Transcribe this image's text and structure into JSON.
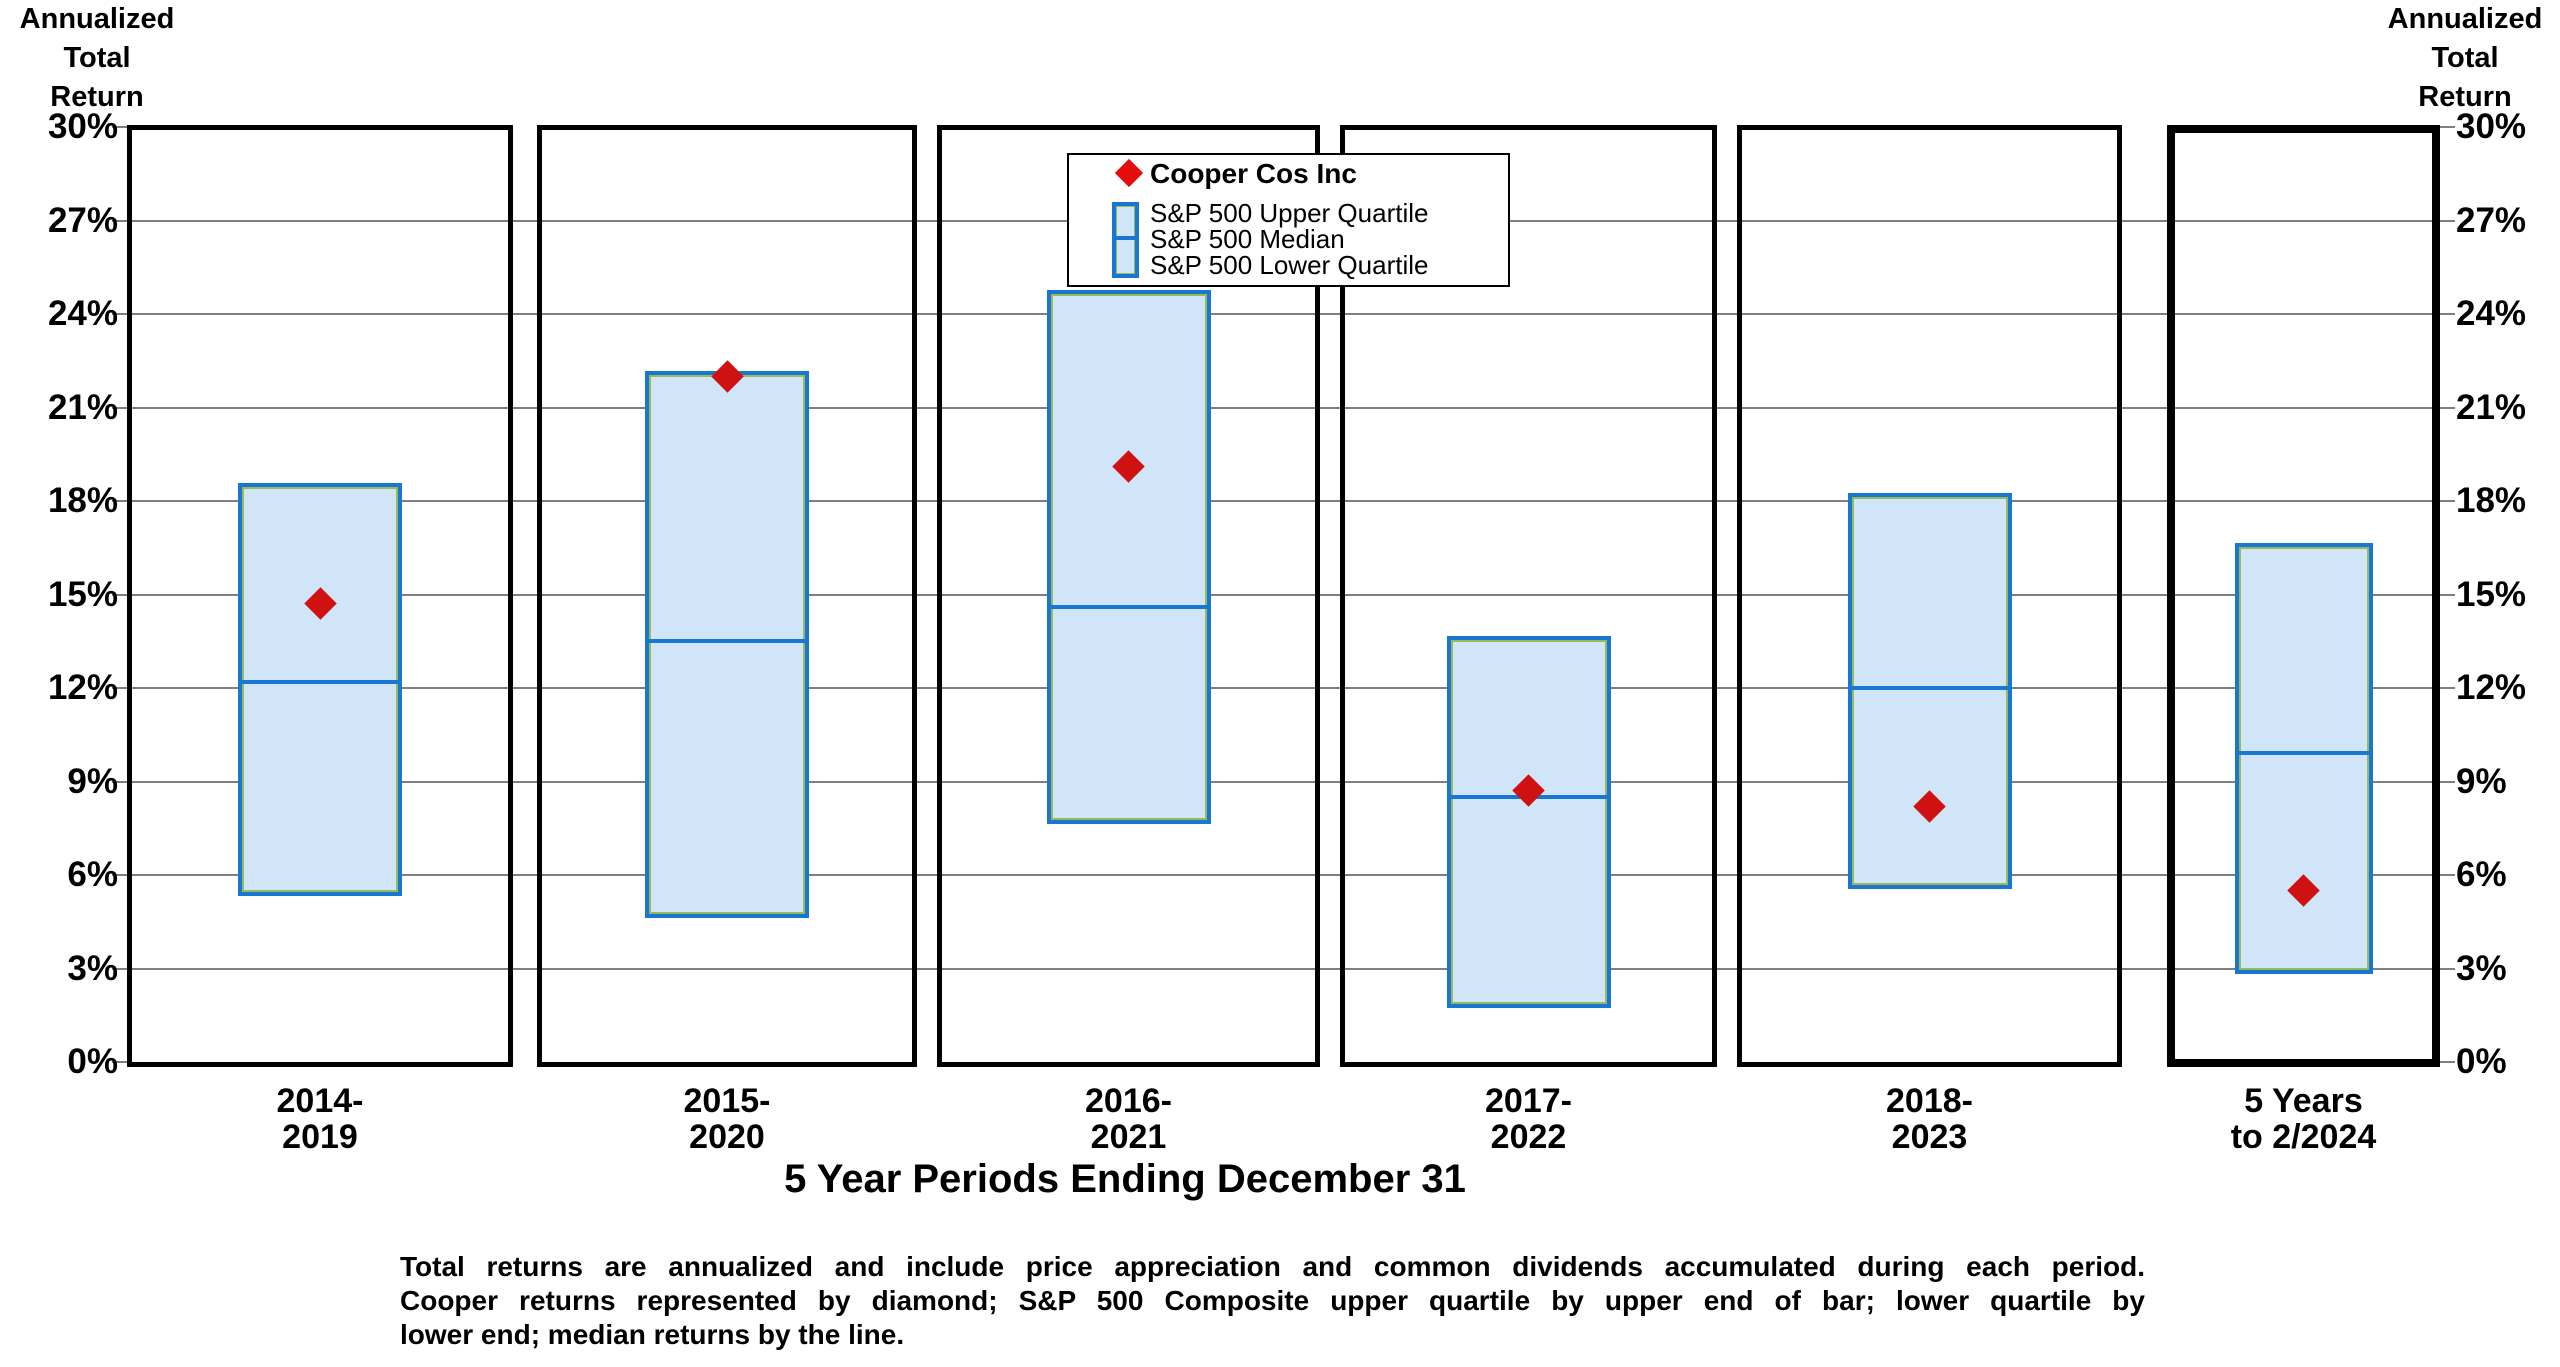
{
  "titles": {
    "y_axis_left": [
      "Annualized",
      "Total",
      "Return"
    ],
    "y_axis_right": [
      "Annualized",
      "Total",
      "Return"
    ],
    "x_axis": "5 Year Periods Ending December 31"
  },
  "legend": {
    "cooper": "Cooper Cos Inc",
    "upper": "S&P 500 Upper Quartile",
    "median": "S&P 500 Median",
    "lower": "S&P 500 Lower Quartile"
  },
  "footnote": {
    "line1": "Total returns are annualized and include price appreciation and common dividends accumulated during each period.",
    "line2": "Cooper returns represented by diamond; S&P 500 Composite upper quartile by upper end of bar; lower quartile by",
    "line3": "lower end; median returns by the line."
  },
  "colors": {
    "bar_fill": "#d0e6f8",
    "bar_border": "#1777d2",
    "bar_inner_edge": "#9aba57",
    "diamond_red": "#d01111",
    "gridline": "#7f7f7f",
    "frame": "#000000"
  },
  "chart_data": {
    "type": "bar",
    "subtype": "floating-quartile-range-bars-with-diamond-markers",
    "categories": [
      "2014-2019",
      "2015-2020",
      "2016-2021",
      "2017-2022",
      "2018-2023",
      "5 Years to 2/2024"
    ],
    "category_label_lines": [
      [
        "2014-",
        "2019"
      ],
      [
        "2015-",
        "2020"
      ],
      [
        "2016-",
        "2021"
      ],
      [
        "2017-",
        "2022"
      ],
      [
        "2018-",
        "2023"
      ],
      [
        "5 Years",
        "to  2/2024"
      ]
    ],
    "series": [
      {
        "name": "Cooper Cos Inc",
        "marker": "red-diamond",
        "values": [
          14.7,
          22.0,
          19.1,
          8.7,
          8.2,
          5.5
        ]
      },
      {
        "name": "S&P 500 Upper Quartile",
        "marker": "bar-top",
        "values": [
          18.5,
          22.1,
          24.7,
          13.6,
          18.2,
          16.6
        ]
      },
      {
        "name": "S&P 500 Median",
        "marker": "bar-line",
        "values": [
          12.2,
          13.5,
          14.6,
          8.5,
          12.0,
          9.9
        ]
      },
      {
        "name": "S&P 500 Lower Quartile",
        "marker": "bar-bottom",
        "values": [
          5.4,
          4.7,
          7.7,
          1.8,
          5.6,
          2.9
        ]
      }
    ],
    "title": "",
    "xlabel": "5 Year Periods Ending December 31",
    "ylabel": "Annualized Total Return",
    "ylim": [
      0,
      30
    ],
    "ytick_step": 3,
    "ytick_suffix": "%",
    "grid": true,
    "legend_position": "top-center",
    "highlighted_last_panel": true
  }
}
